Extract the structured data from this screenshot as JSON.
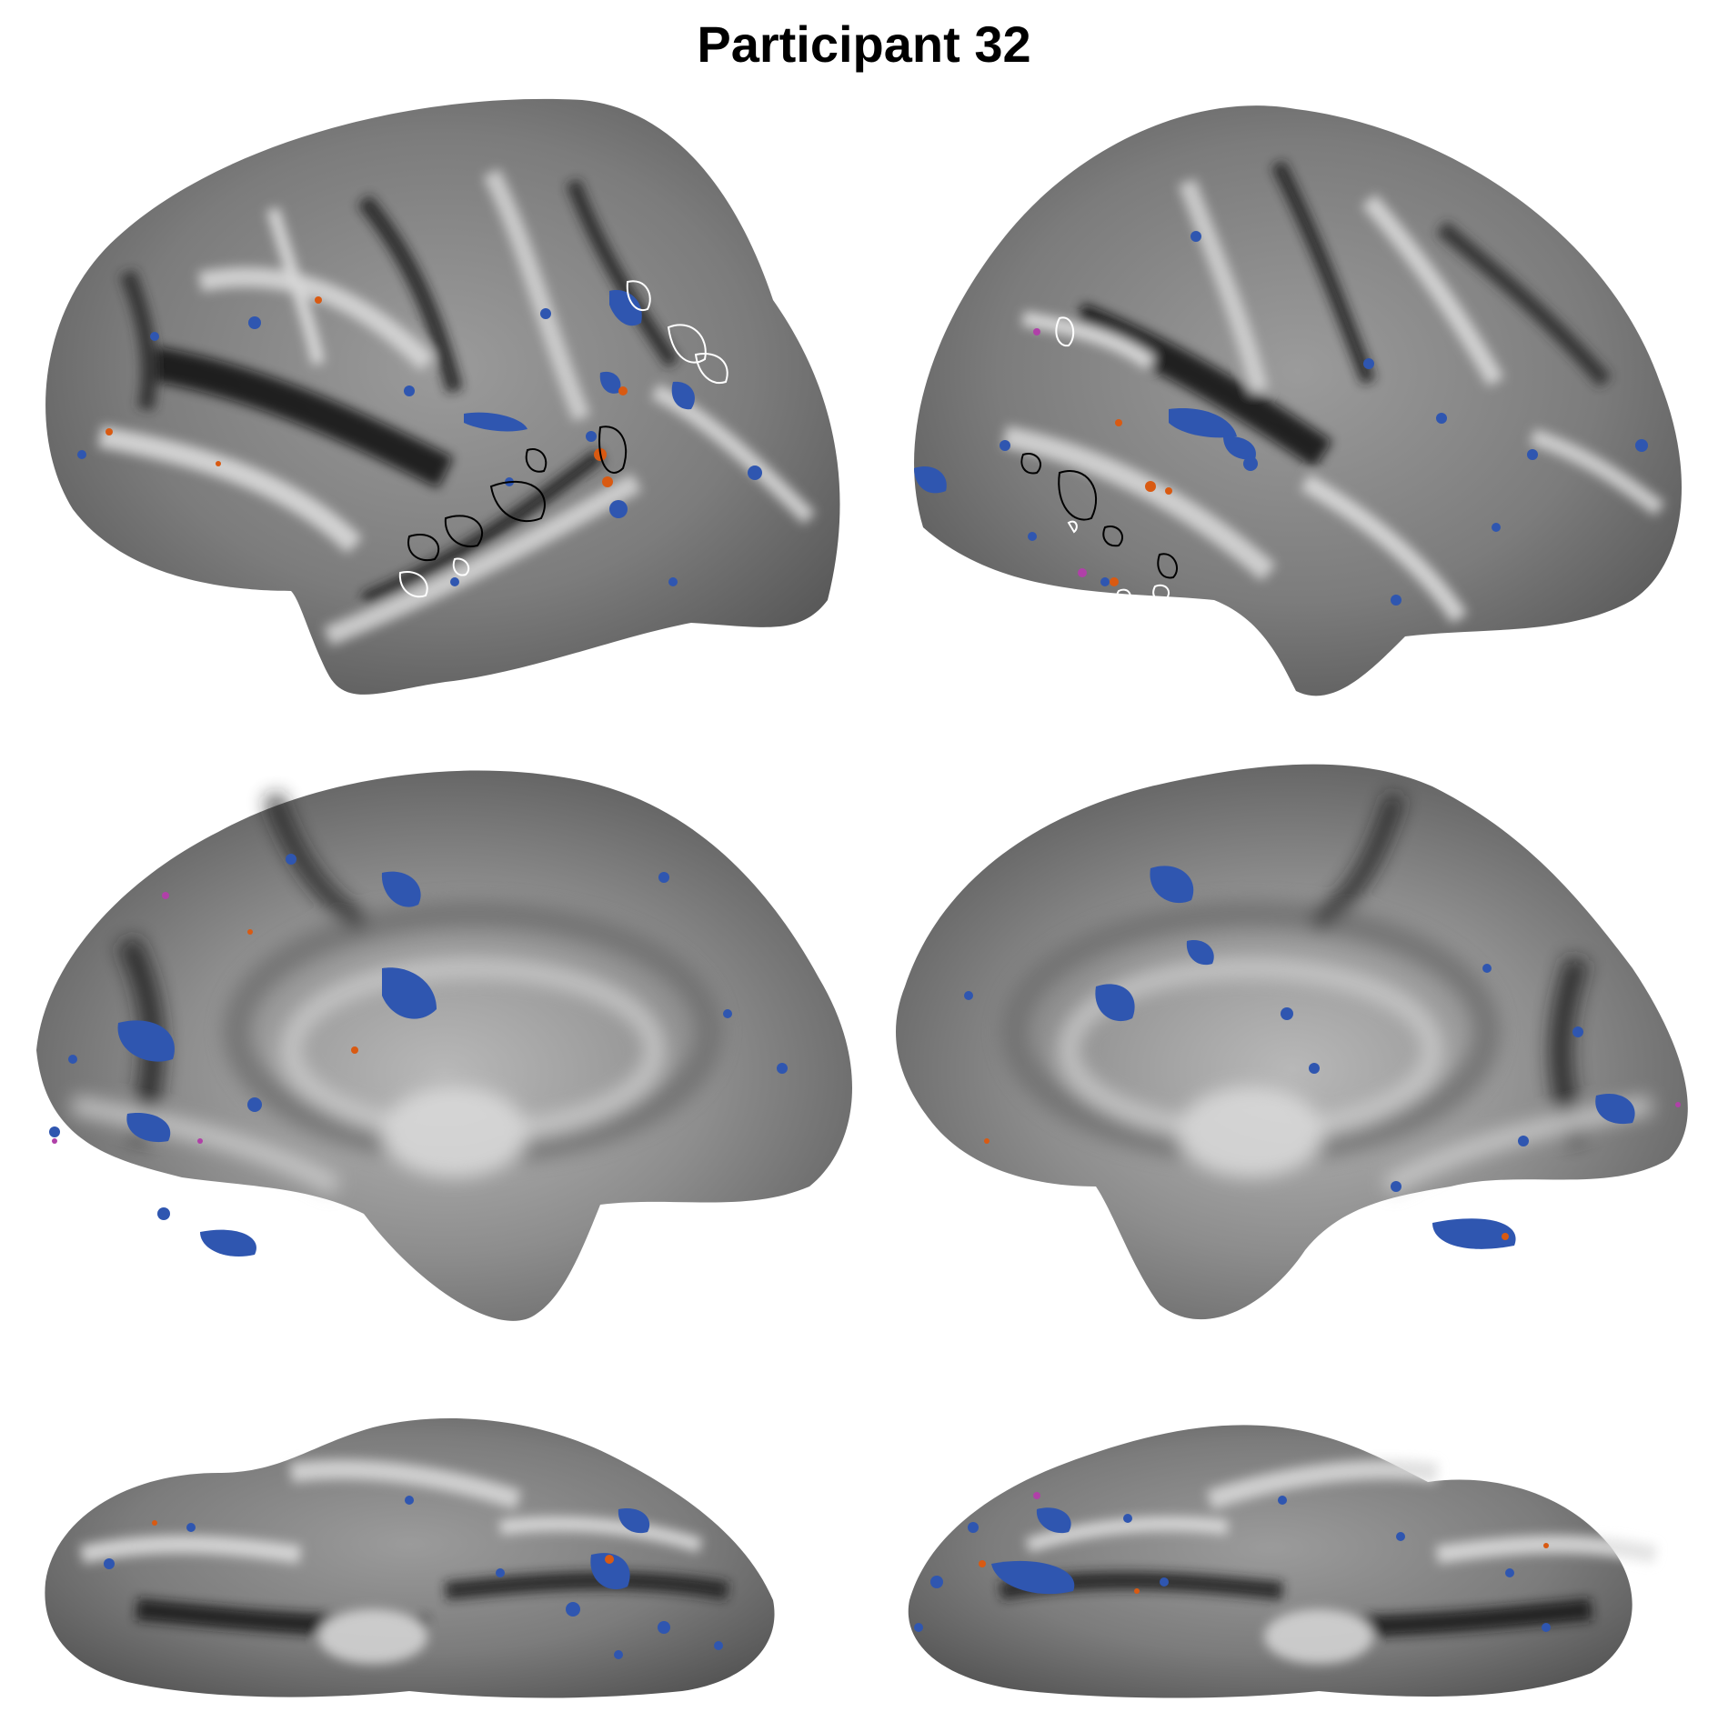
{
  "title": "Participant 32",
  "views": [
    {
      "name": "left-lateral"
    },
    {
      "name": "right-lateral"
    },
    {
      "name": "left-medial"
    },
    {
      "name": "right-medial"
    },
    {
      "name": "left-ventral"
    },
    {
      "name": "right-ventral"
    }
  ],
  "colors": {
    "cortex_light": "#d9d9d9",
    "cortex_mid": "#8a8a8a",
    "cortex_dark": "#1a1a1a",
    "blue_activation": "#2f56b0",
    "orange_activation": "#d95a12",
    "magenta_activation": "#b040a8",
    "outline_white": "#ffffff",
    "outline_black": "#000000"
  }
}
